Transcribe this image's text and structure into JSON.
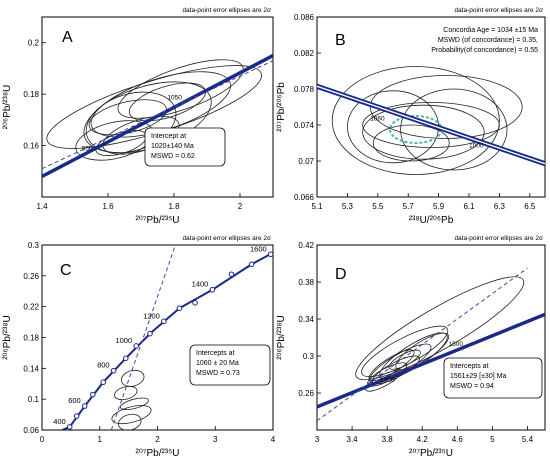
{
  "chart_data": [
    {
      "type": "scatter",
      "panel_letter": "A",
      "error_note": "data-point error ellipses are 2σ",
      "xlabel": "²⁰⁷Pb/²³⁵U",
      "ylabel": "²⁰⁶Pb/²³⁸U",
      "xlim": [
        1.4,
        2.1
      ],
      "ylim": [
        0.14,
        0.21
      ],
      "x_ticks": [
        1.4,
        1.6,
        1.8,
        2.0
      ],
      "y_ticks": [
        0.16,
        0.18,
        0.2
      ],
      "concordia_labels": [
        {
          "text": "950",
          "x": 1.52,
          "y": 0.158
        },
        {
          "text": "1050",
          "x": 1.78,
          "y": 0.178
        }
      ],
      "ellipses": [
        {
          "cx": 1.74,
          "cy": 0.175,
          "rx": 0.34,
          "ry": 0.01,
          "angle": 0.04
        },
        {
          "cx": 1.72,
          "cy": 0.171,
          "rx": 0.2,
          "ry": 0.012,
          "angle": 0.04
        },
        {
          "cx": 1.67,
          "cy": 0.169,
          "rx": 0.14,
          "ry": 0.011,
          "angle": 0.04
        },
        {
          "cx": 1.76,
          "cy": 0.176,
          "rx": 0.22,
          "ry": 0.01,
          "angle": 0.04
        },
        {
          "cx": 1.64,
          "cy": 0.161,
          "rx": 0.08,
          "ry": 0.004,
          "angle": 0.04
        },
        {
          "cx": 1.66,
          "cy": 0.171,
          "rx": 0.12,
          "ry": 0.006,
          "angle": 0.03
        },
        {
          "cx": 1.7,
          "cy": 0.164,
          "rx": 0.12,
          "ry": 0.006,
          "angle": 0.04
        },
        {
          "cx": 1.82,
          "cy": 0.182,
          "rx": 0.2,
          "ry": 0.008,
          "angle": 0.045
        },
        {
          "cx": 1.78,
          "cy": 0.177,
          "rx": 0.12,
          "ry": 0.006,
          "angle": 0.04
        },
        {
          "cx": 1.62,
          "cy": 0.162,
          "rx": 0.12,
          "ry": 0.007,
          "angle": 0.03
        }
      ],
      "concordia_line": [
        {
          "x": 1.4,
          "y": 0.148
        },
        {
          "x": 2.1,
          "y": 0.195
        }
      ],
      "discordia_line": [
        {
          "x": 1.4,
          "y": 0.151
        },
        {
          "x": 2.1,
          "y": 0.193
        }
      ],
      "annotation": [
        "Intercept at",
        "1020±140 Ma",
        "MSWD = 0.62"
      ],
      "annotation_pos": "bottom-right"
    },
    {
      "type": "scatter",
      "panel_letter": "B",
      "error_note": "data-point error ellipses are 2σ",
      "xlabel": "²³⁸U/²⁰⁶Pb",
      "ylabel": "²⁰⁷Pb/²⁰⁶Pb",
      "xlim": [
        5.1,
        6.6
      ],
      "ylim": [
        0.066,
        0.086
      ],
      "x_ticks": [
        5.1,
        5.3,
        5.5,
        5.7,
        5.9,
        6.1,
        6.3,
        6.5
      ],
      "y_ticks": [
        0.066,
        0.07,
        0.074,
        0.078,
        0.082,
        0.086
      ],
      "concordia_labels": [
        {
          "text": "1060",
          "x": 5.45,
          "y": 0.0745
        },
        {
          "text": "1000",
          "x": 6.1,
          "y": 0.0715
        }
      ],
      "ellipses": [
        {
          "cx": 5.75,
          "cy": 0.0745,
          "rx": 0.55,
          "ry": 0.006,
          "angle": 0
        },
        {
          "cx": 5.95,
          "cy": 0.076,
          "rx": 0.5,
          "ry": 0.0035,
          "angle": 0
        },
        {
          "cx": 5.8,
          "cy": 0.0732,
          "rx": 0.4,
          "ry": 0.003,
          "angle": 0
        },
        {
          "cx": 5.6,
          "cy": 0.0738,
          "rx": 0.3,
          "ry": 0.004,
          "angle": 0
        },
        {
          "cx": 5.72,
          "cy": 0.072,
          "rx": 0.25,
          "ry": 0.002,
          "angle": 0
        },
        {
          "cx": 6.0,
          "cy": 0.0735,
          "rx": 0.35,
          "ry": 0.0045,
          "angle": 0
        },
        {
          "cx": 5.85,
          "cy": 0.074,
          "rx": 0.45,
          "ry": 0.0025,
          "angle": 0
        }
      ],
      "concordia_age_ellipse": {
        "cx": 5.75,
        "cy": 0.0735,
        "rx": 0.17,
        "ry": 0.0015
      },
      "concordia_line": [
        {
          "x": 5.1,
          "y": 0.0783
        },
        {
          "x": 6.6,
          "y": 0.0697
        }
      ],
      "annotation": [
        "Concordia Age = 1034 ±15 Ma",
        "MSWD (of concordance) = 0.35,",
        "Probability(of concordance) = 0.55"
      ],
      "annotation_pos": "top-right"
    },
    {
      "type": "scatter",
      "panel_letter": "C",
      "error_note": "data-point error ellipses are 2σ",
      "xlabel": "²⁰⁷Pb/²³⁵U",
      "ylabel": "²⁰⁶Pb/²³⁸U",
      "xlim": [
        0,
        4
      ],
      "ylim": [
        0.06,
        0.3
      ],
      "x_ticks": [
        0,
        1,
        2,
        3,
        4
      ],
      "y_ticks": [
        0.06,
        0.1,
        0.14,
        0.18,
        0.22,
        0.26,
        0.3
      ],
      "concordia_points": [
        {
          "x": 0.48,
          "y": 0.064,
          "label": "400"
        },
        {
          "x": 0.6,
          "y": 0.078,
          "label": ""
        },
        {
          "x": 0.74,
          "y": 0.091,
          "label": "600"
        },
        {
          "x": 0.88,
          "y": 0.106,
          "label": ""
        },
        {
          "x": 1.06,
          "y": 0.122,
          "label": ""
        },
        {
          "x": 1.24,
          "y": 0.137,
          "label": "800"
        },
        {
          "x": 1.45,
          "y": 0.153,
          "label": ""
        },
        {
          "x": 1.63,
          "y": 0.169,
          "label": "1000"
        },
        {
          "x": 1.87,
          "y": 0.185,
          "label": ""
        },
        {
          "x": 2.11,
          "y": 0.201,
          "label": "1200"
        },
        {
          "x": 2.38,
          "y": 0.218,
          "label": ""
        },
        {
          "x": 2.65,
          "y": 0.225,
          "label": ""
        },
        {
          "x": 2.95,
          "y": 0.242,
          "label": "1400"
        },
        {
          "x": 3.28,
          "y": 0.262,
          "label": ""
        },
        {
          "x": 3.63,
          "y": 0.275,
          "label": ""
        },
        {
          "x": 3.96,
          "y": 0.288,
          "label": "1600"
        }
      ],
      "concordia_curve": [
        {
          "x": 0.35,
          "y": 0.06
        },
        {
          "x": 0.48,
          "y": 0.064
        },
        {
          "x": 0.74,
          "y": 0.091
        },
        {
          "x": 1.06,
          "y": 0.122
        },
        {
          "x": 1.45,
          "y": 0.153
        },
        {
          "x": 1.87,
          "y": 0.185
        },
        {
          "x": 2.38,
          "y": 0.218
        },
        {
          "x": 2.95,
          "y": 0.242
        },
        {
          "x": 3.63,
          "y": 0.275
        },
        {
          "x": 4.0,
          "y": 0.29
        }
      ],
      "ellipses": [
        {
          "cx": 1.55,
          "cy": 0.08,
          "rx": 0.35,
          "ry": 0.01,
          "angle": 0.02
        },
        {
          "cx": 1.6,
          "cy": 0.094,
          "rx": 0.25,
          "ry": 0.006,
          "angle": 0.02
        },
        {
          "cx": 1.45,
          "cy": 0.108,
          "rx": 0.2,
          "ry": 0.008,
          "angle": 0.02
        },
        {
          "cx": 1.57,
          "cy": 0.127,
          "rx": 0.2,
          "ry": 0.01,
          "angle": 0.02
        },
        {
          "cx": 1.52,
          "cy": 0.07,
          "rx": 0.2,
          "ry": 0.01,
          "angle": 0.02
        }
      ],
      "discordia_line": [
        {
          "x": 1.2,
          "y": 0.06
        },
        {
          "x": 2.31,
          "y": 0.3
        }
      ],
      "annotation": [
        "Intercepts at",
        "1060 ± 20 Ma",
        "MSWD = 0.73"
      ],
      "annotation_pos": "bottom-right"
    },
    {
      "type": "scatter",
      "panel_letter": "D",
      "error_note": "data-point error ellipses are 2σ",
      "xlabel": "²⁰⁷Pb/²³⁵U",
      "ylabel": "²⁰⁶Pb/²³⁸U",
      "xlim": [
        3.0,
        5.6
      ],
      "ylim": [
        0.22,
        0.42
      ],
      "x_ticks": [
        3.0,
        3.4,
        3.8,
        4.2,
        4.6,
        5.0,
        5.4
      ],
      "y_ticks": [
        0.26,
        0.3,
        0.34,
        0.38,
        0.42
      ],
      "concordia_labels": [
        {
          "text": "1500",
          "x": 4.5,
          "y": 0.311
        },
        {
          "text": "1300",
          "x": 3.72,
          "y": 0.272
        }
      ],
      "ellipses": [
        {
          "cx": 4.4,
          "cy": 0.33,
          "rx": 1.1,
          "ry": 0.022,
          "angle": 0.055
        },
        {
          "cx": 4.0,
          "cy": 0.305,
          "rx": 0.55,
          "ry": 0.014,
          "angle": 0.05
        },
        {
          "cx": 3.95,
          "cy": 0.292,
          "rx": 0.4,
          "ry": 0.01,
          "angle": 0.055
        },
        {
          "cx": 3.9,
          "cy": 0.285,
          "rx": 0.3,
          "ry": 0.008,
          "angle": 0.05
        },
        {
          "cx": 4.1,
          "cy": 0.3,
          "rx": 0.45,
          "ry": 0.012,
          "angle": 0.06
        },
        {
          "cx": 3.8,
          "cy": 0.28,
          "rx": 0.25,
          "ry": 0.007,
          "angle": 0.05
        },
        {
          "cx": 4.2,
          "cy": 0.305,
          "rx": 0.35,
          "ry": 0.01,
          "angle": 0.06
        },
        {
          "cx": 3.85,
          "cy": 0.29,
          "rx": 0.3,
          "ry": 0.008,
          "angle": 0.06
        },
        {
          "cx": 4.0,
          "cy": 0.296,
          "rx": 0.2,
          "ry": 0.006,
          "angle": 0.05
        },
        {
          "cx": 3.75,
          "cy": 0.273,
          "rx": 0.22,
          "ry": 0.006,
          "angle": 0.05
        }
      ],
      "concordia_line": [
        {
          "x": 3.0,
          "y": 0.245
        },
        {
          "x": 5.6,
          "y": 0.345
        }
      ],
      "discordia_line": [
        {
          "x": 3.0,
          "y": 0.23
        },
        {
          "x": 5.4,
          "y": 0.395
        }
      ],
      "annotation": [
        "Intercepts at",
        "1561±29  [±30]  Ma",
        "MSWD = 0.94"
      ],
      "annotation_pos": "bottom-right"
    }
  ]
}
